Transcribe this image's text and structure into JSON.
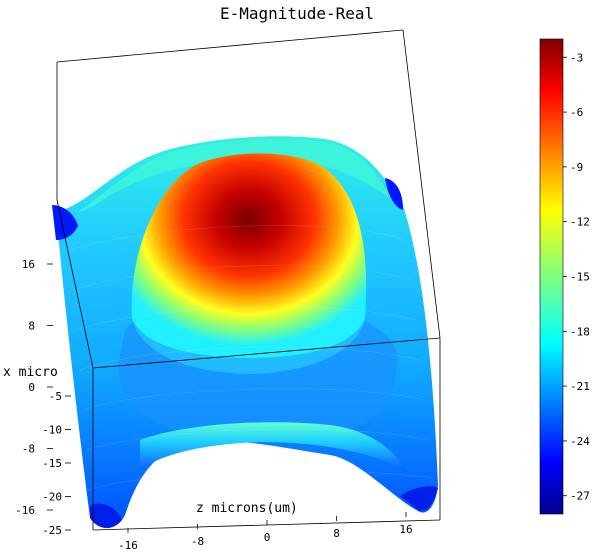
{
  "chart_data": {
    "type": "surface-3d",
    "title": "E-Magnitude-Real",
    "xlabel": "z microns(um)",
    "ylabel": "x micro",
    "colormap": "jet",
    "colorbar": {
      "range": [
        -28,
        -2
      ],
      "ticks": [
        "-3",
        "-6",
        "-9",
        "-12",
        "-15",
        "-18",
        "-21",
        "-24",
        "-27"
      ],
      "placement": "right"
    },
    "z_axis_ticks": [
      "-16",
      "-8",
      "0",
      "8",
      "16"
    ],
    "x_axis_ticks": [
      "16",
      "8",
      "0",
      "-8",
      "-16"
    ],
    "vertical_axis_ticks": [
      "-5",
      "-10",
      "-15",
      "-20",
      "-25"
    ],
    "surface": {
      "peak_value": -3,
      "min_value": -27,
      "shape": "central dome with raised rim, blue low regions at corners"
    }
  }
}
